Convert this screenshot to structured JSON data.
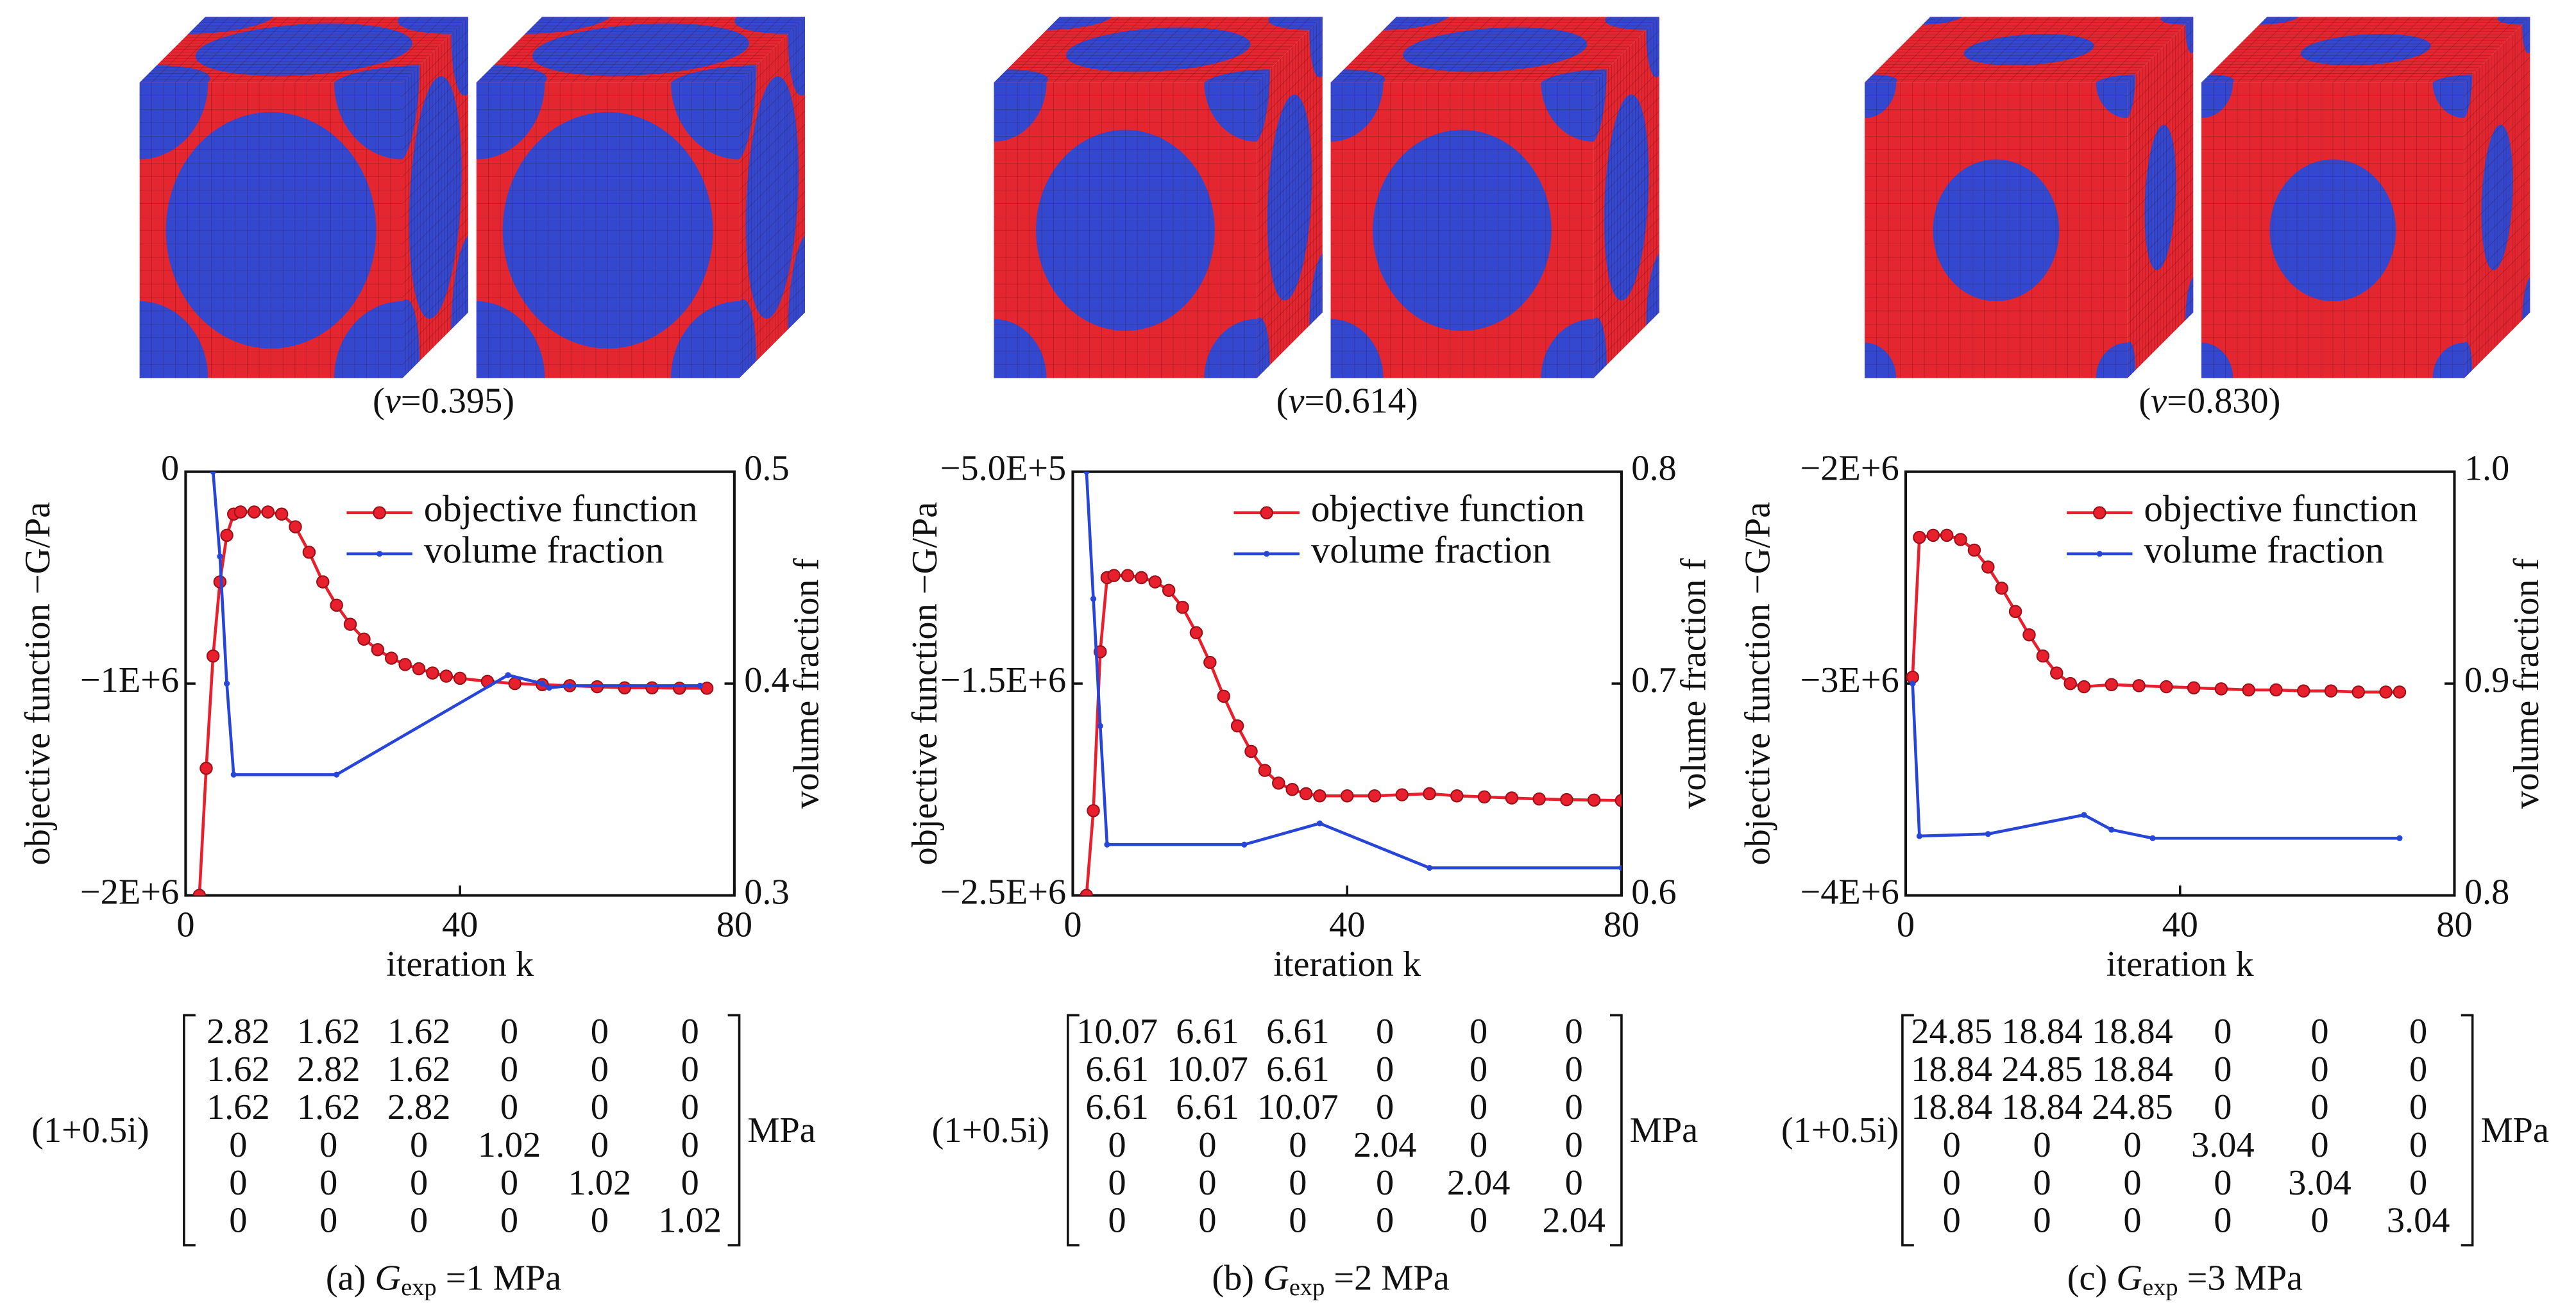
{
  "chart_data": [
    {
      "type": "line",
      "xlabel": "iteration k",
      "ylabel": "objective function −G/Pa",
      "y2label": "volume fraction f",
      "xlim": [
        0,
        80
      ],
      "xticks": [
        0,
        40,
        80
      ],
      "ylim": [
        -2000000,
        0
      ],
      "yticks": [
        {
          "value": -2000000,
          "label": "−2E+6"
        },
        {
          "value": -1000000,
          "label": "−1E+6"
        },
        0
      ],
      "y2lim": [
        0.3,
        0.5
      ],
      "y2ticks": [
        0.3,
        0.4,
        0.5
      ],
      "legend": "upper right",
      "series": [
        {
          "name": "objective function",
          "color": "#e8202e",
          "marker": "o",
          "x": [
            2,
            3,
            4,
            5,
            6,
            7,
            8,
            10,
            12,
            14,
            16,
            18,
            20,
            22,
            24,
            26,
            28,
            30,
            32,
            34,
            36,
            38,
            40,
            44,
            48,
            52,
            56,
            60,
            64,
            68,
            72,
            76
          ],
          "values": [
            -2000000,
            -1400000,
            -870000,
            -520000,
            -300000,
            -200000,
            -190000,
            -190000,
            -190000,
            -200000,
            -260000,
            -380000,
            -520000,
            -630000,
            -720000,
            -790000,
            -840000,
            -880000,
            -910000,
            -930000,
            -950000,
            -965000,
            -975000,
            -990000,
            -1000000,
            -1005000,
            -1010000,
            -1015000,
            -1020000,
            -1020000,
            -1022000,
            -1022000
          ]
        },
        {
          "name": "volume fraction",
          "color": "#2746d8",
          "marker": ".",
          "axis": "y2",
          "x": [
            4,
            5,
            6,
            7,
            22,
            47,
            52,
            53,
            56,
            75
          ],
          "values": [
            0.5,
            0.46,
            0.4,
            0.357,
            0.357,
            0.404,
            0.4,
            0.398,
            0.399,
            0.399
          ]
        }
      ]
    },
    {
      "type": "line",
      "xlabel": "iteration k",
      "ylabel": "objective function −G/Pa",
      "y2label": "volume fraction f",
      "xlim": [
        0,
        80
      ],
      "xticks": [
        0,
        40,
        80
      ],
      "ylim": [
        -2500000,
        -500000
      ],
      "yticks": [
        {
          "value": -2500000,
          "label": "−2.5E+6"
        },
        {
          "value": -1500000,
          "label": "−1.5E+6"
        },
        {
          "value": -500000,
          "label": "−5.0E+5"
        }
      ],
      "y2lim": [
        0.6,
        0.8
      ],
      "y2ticks": [
        0.6,
        0.7,
        0.8
      ],
      "legend": "upper right",
      "series": [
        {
          "name": "objective function",
          "color": "#e8202e",
          "marker": "o",
          "x": [
            2,
            3,
            4,
            5,
            6,
            8,
            10,
            12,
            14,
            16,
            18,
            20,
            22,
            24,
            26,
            28,
            30,
            32,
            34,
            36,
            40,
            44,
            48,
            52,
            56,
            60,
            64,
            68,
            72,
            76,
            80
          ],
          "values": [
            -2500000,
            -2100000,
            -1350000,
            -1000000,
            -990000,
            -990000,
            -1000000,
            -1020000,
            -1060000,
            -1140000,
            -1260000,
            -1400000,
            -1560000,
            -1700000,
            -1820000,
            -1910000,
            -1970000,
            -2000000,
            -2020000,
            -2030000,
            -2030000,
            -2030000,
            -2025000,
            -2020000,
            -2030000,
            -2035000,
            -2040000,
            -2045000,
            -2048000,
            -2050000,
            -2052000
          ]
        },
        {
          "name": "volume fraction",
          "color": "#2746d8",
          "marker": ".",
          "axis": "y2",
          "x": [
            2,
            3,
            4,
            5,
            25,
            36,
            52,
            80
          ],
          "values": [
            0.8,
            0.74,
            0.68,
            0.624,
            0.624,
            0.634,
            0.613,
            0.613
          ]
        }
      ]
    },
    {
      "type": "line",
      "xlabel": "iteration k",
      "ylabel": "objective function −G/Pa",
      "y2label": "volume fraction f",
      "xlim": [
        0,
        80
      ],
      "xticks": [
        0,
        40,
        80
      ],
      "ylim": [
        -4000000,
        -2000000
      ],
      "yticks": [
        {
          "value": -4000000,
          "label": "−4E+6"
        },
        {
          "value": -3000000,
          "label": "−3E+6"
        },
        {
          "value": -2000000,
          "label": "−2E+6"
        }
      ],
      "y2lim": [
        0.8,
        1
      ],
      "y2ticks": [
        0.8,
        0.9,
        {
          "value": 1,
          "label": "1.0"
        }
      ],
      "legend": "upper right",
      "series": [
        {
          "name": "objective function",
          "color": "#e8202e",
          "marker": "o",
          "x": [
            1,
            2,
            4,
            6,
            8,
            10,
            12,
            14,
            16,
            18,
            20,
            22,
            24,
            26,
            30,
            34,
            38,
            42,
            46,
            50,
            54,
            58,
            62,
            66,
            70,
            72
          ],
          "values": [
            -2970000,
            -2310000,
            -2300000,
            -2300000,
            -2320000,
            -2370000,
            -2450000,
            -2550000,
            -2660000,
            -2770000,
            -2870000,
            -2950000,
            -3000000,
            -3015000,
            -3005000,
            -3010000,
            -3015000,
            -3020000,
            -3025000,
            -3030000,
            -3030000,
            -3035000,
            -3035000,
            -3040000,
            -3040000,
            -3040000
          ]
        },
        {
          "name": "volume fraction",
          "color": "#2746d8",
          "marker": ".",
          "axis": "y2",
          "x": [
            1,
            2,
            12,
            26,
            30,
            36,
            72
          ],
          "values": [
            0.9,
            0.828,
            0.829,
            0.838,
            0.831,
            0.827,
            0.827
          ]
        }
      ]
    }
  ],
  "panels": [
    {
      "v_label": [
        "(",
        "v",
        "=0.395",
        ")"
      ],
      "prefactor": "(1+0.5i)",
      "unit": "MPa",
      "matrix": [
        [
          2.82,
          1.62,
          1.62,
          0,
          0,
          0
        ],
        [
          1.62,
          2.82,
          1.62,
          0,
          0,
          0
        ],
        [
          1.62,
          1.62,
          2.82,
          0,
          0,
          0
        ],
        [
          0,
          0,
          0,
          1.02,
          0,
          0
        ],
        [
          0,
          0,
          0,
          0,
          1.02,
          0
        ],
        [
          0,
          0,
          0,
          0,
          0,
          1.02
        ]
      ],
      "caption": [
        "(a) ",
        "G",
        "exp",
        " =1 MPa"
      ]
    },
    {
      "v_label": [
        "(",
        "v",
        "=0.614",
        ")"
      ],
      "prefactor": "(1+0.5i)",
      "unit": "MPa",
      "matrix": [
        [
          10.07,
          6.61,
          6.61,
          0,
          0,
          0
        ],
        [
          6.61,
          10.07,
          6.61,
          0,
          0,
          0
        ],
        [
          6.61,
          6.61,
          10.07,
          0,
          0,
          0
        ],
        [
          0,
          0,
          0,
          2.04,
          0,
          0
        ],
        [
          0,
          0,
          0,
          0,
          2.04,
          0
        ],
        [
          0,
          0,
          0,
          0,
          0,
          2.04
        ]
      ],
      "caption": [
        "(b) ",
        "G",
        "exp",
        " =2 MPa"
      ]
    },
    {
      "v_label": [
        "(",
        "v",
        "=0.830",
        ")"
      ],
      "prefactor": "(1+0.5i)",
      "unit": "MPa",
      "matrix": [
        [
          24.85,
          18.84,
          18.84,
          0,
          0,
          0
        ],
        [
          18.84,
          24.85,
          18.84,
          0,
          0,
          0
        ],
        [
          18.84,
          18.84,
          24.85,
          0,
          0,
          0
        ],
        [
          0,
          0,
          0,
          3.04,
          0,
          0
        ],
        [
          0,
          0,
          0,
          0,
          3.04,
          0
        ],
        [
          0,
          0,
          0,
          0,
          0,
          3.04
        ]
      ],
      "caption": [
        "(c) ",
        "G",
        "exp",
        " =3 MPa"
      ]
    }
  ]
}
